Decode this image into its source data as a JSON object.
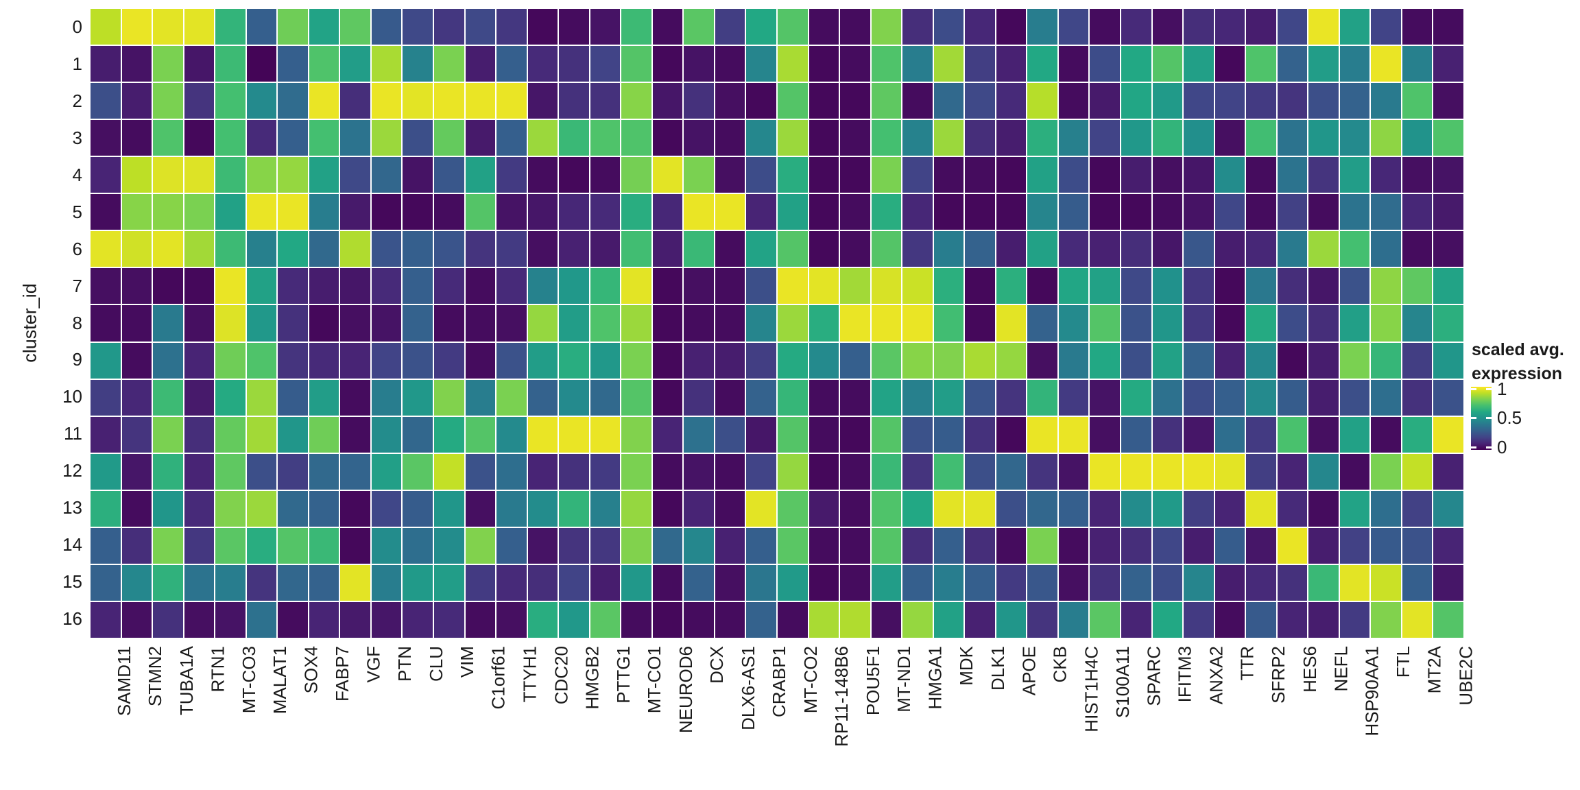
{
  "figure": {
    "background": "#ffffff",
    "text_color": "#1a1a1a"
  },
  "chart_data": {
    "type": "heatmap",
    "title": "",
    "xlabel": "",
    "ylabel": "cluster_id",
    "colormap": "viridis",
    "grid_gap_color": "#ffffff",
    "value_range": [
      0,
      1
    ],
    "legend": {
      "position": "right",
      "title_line1": "scaled avg.",
      "title_line2": "expression",
      "tick_labels": [
        "1",
        "0.5",
        "0"
      ],
      "tick_values": [
        1,
        0.5,
        0
      ]
    },
    "palette": [
      [
        0.0,
        "#440154"
      ],
      [
        0.1,
        "#482475"
      ],
      [
        0.2,
        "#414487"
      ],
      [
        0.3,
        "#355f8d"
      ],
      [
        0.4,
        "#2a788e"
      ],
      [
        0.5,
        "#21918c"
      ],
      [
        0.6,
        "#22a884"
      ],
      [
        0.7,
        "#44bf70"
      ],
      [
        0.8,
        "#7ad151"
      ],
      [
        0.9,
        "#bddf26"
      ],
      [
        1.0,
        "#fde725"
      ]
    ],
    "rows": [
      "0",
      "1",
      "2",
      "3",
      "4",
      "5",
      "6",
      "7",
      "8",
      "9",
      "10",
      "11",
      "12",
      "13",
      "14",
      "15",
      "16"
    ],
    "columns": [
      "SAMD11",
      "STMN2",
      "TUBA1A",
      "RTN1",
      "MT-CO3",
      "MALAT1",
      "SOX4",
      "FABP7",
      "VGF",
      "PTN",
      "CLU",
      "VIM",
      "C1orf61",
      "TTYH1",
      "CDC20",
      "HMGB2",
      "PTTG1",
      "MT-CO1",
      "NEUROD6",
      "DCX",
      "DLX6-AS1",
      "CRABP1",
      "MT-CO2",
      "RP11-148B6",
      "POU5F1",
      "MT-ND1",
      "HMGA1",
      "MDK",
      "DLK1",
      "APOE",
      "CKB",
      "HIST1H4C",
      "S100A11",
      "SPARC",
      "IFITM3",
      "ANXA2",
      "TTR",
      "SFRP2",
      "HES6",
      "NEFL",
      "HSP90AA1",
      "FTL",
      "MT2A",
      "UBE2C"
    ],
    "values": [
      [
        0.9,
        0.97,
        0.96,
        0.96,
        0.65,
        0.3,
        0.78,
        0.58,
        0.75,
        0.28,
        0.22,
        0.16,
        0.22,
        0.16,
        0.02,
        0.03,
        0.05,
        0.68,
        0.03,
        0.74,
        0.18,
        0.6,
        0.73,
        0.03,
        0.03,
        0.81,
        0.13,
        0.23,
        0.11,
        0.02,
        0.42,
        0.21,
        0.03,
        0.12,
        0.04,
        0.13,
        0.11,
        0.08,
        0.21,
        0.97,
        0.57,
        0.2,
        0.03,
        0.03
      ],
      [
        0.08,
        0.05,
        0.8,
        0.06,
        0.68,
        0.01,
        0.3,
        0.72,
        0.55,
        0.87,
        0.44,
        0.8,
        0.08,
        0.3,
        0.12,
        0.14,
        0.2,
        0.73,
        0.02,
        0.05,
        0.03,
        0.45,
        0.87,
        0.02,
        0.03,
        0.72,
        0.42,
        0.86,
        0.18,
        0.09,
        0.6,
        0.03,
        0.23,
        0.6,
        0.73,
        0.56,
        0.02,
        0.72,
        0.31,
        0.55,
        0.42,
        0.97,
        0.43,
        0.09
      ],
      [
        0.24,
        0.08,
        0.8,
        0.15,
        0.7,
        0.47,
        0.35,
        0.97,
        0.13,
        0.97,
        0.96,
        0.97,
        0.97,
        0.97,
        0.06,
        0.14,
        0.14,
        0.82,
        0.06,
        0.14,
        0.04,
        0.02,
        0.73,
        0.02,
        0.02,
        0.75,
        0.03,
        0.34,
        0.22,
        0.12,
        0.89,
        0.03,
        0.07,
        0.59,
        0.54,
        0.21,
        0.2,
        0.17,
        0.15,
        0.24,
        0.31,
        0.41,
        0.72,
        0.04
      ],
      [
        0.04,
        0.03,
        0.72,
        0.02,
        0.7,
        0.12,
        0.3,
        0.7,
        0.38,
        0.85,
        0.24,
        0.76,
        0.07,
        0.3,
        0.85,
        0.67,
        0.72,
        0.72,
        0.02,
        0.05,
        0.03,
        0.46,
        0.85,
        0.02,
        0.03,
        0.7,
        0.44,
        0.85,
        0.13,
        0.08,
        0.63,
        0.43,
        0.2,
        0.53,
        0.65,
        0.49,
        0.04,
        0.69,
        0.38,
        0.52,
        0.47,
        0.83,
        0.51,
        0.72
      ],
      [
        0.1,
        0.9,
        0.95,
        0.95,
        0.68,
        0.82,
        0.84,
        0.57,
        0.22,
        0.33,
        0.05,
        0.27,
        0.57,
        0.17,
        0.03,
        0.02,
        0.03,
        0.79,
        0.96,
        0.8,
        0.04,
        0.23,
        0.62,
        0.02,
        0.02,
        0.8,
        0.2,
        0.03,
        0.03,
        0.02,
        0.57,
        0.23,
        0.02,
        0.08,
        0.04,
        0.06,
        0.48,
        0.03,
        0.38,
        0.15,
        0.55,
        0.11,
        0.04,
        0.05
      ],
      [
        0.03,
        0.82,
        0.82,
        0.8,
        0.57,
        0.97,
        0.97,
        0.42,
        0.07,
        0.02,
        0.02,
        0.03,
        0.73,
        0.05,
        0.06,
        0.11,
        0.12,
        0.62,
        0.11,
        0.97,
        0.97,
        0.1,
        0.57,
        0.02,
        0.03,
        0.62,
        0.11,
        0.02,
        0.02,
        0.02,
        0.45,
        0.29,
        0.02,
        0.02,
        0.03,
        0.05,
        0.21,
        0.03,
        0.19,
        0.03,
        0.38,
        0.35,
        0.11,
        0.07
      ],
      [
        0.96,
        0.93,
        0.96,
        0.86,
        0.68,
        0.43,
        0.6,
        0.34,
        0.88,
        0.26,
        0.3,
        0.26,
        0.15,
        0.17,
        0.04,
        0.09,
        0.07,
        0.69,
        0.08,
        0.67,
        0.03,
        0.58,
        0.73,
        0.02,
        0.03,
        0.73,
        0.16,
        0.42,
        0.31,
        0.08,
        0.57,
        0.12,
        0.09,
        0.13,
        0.06,
        0.27,
        0.08,
        0.11,
        0.41,
        0.85,
        0.7,
        0.36,
        0.03,
        0.04
      ],
      [
        0.04,
        0.04,
        0.02,
        0.02,
        0.97,
        0.57,
        0.12,
        0.08,
        0.06,
        0.12,
        0.3,
        0.12,
        0.03,
        0.12,
        0.44,
        0.53,
        0.66,
        0.96,
        0.02,
        0.04,
        0.03,
        0.24,
        0.97,
        0.96,
        0.86,
        0.94,
        0.92,
        0.63,
        0.02,
        0.63,
        0.02,
        0.59,
        0.57,
        0.22,
        0.5,
        0.16,
        0.02,
        0.4,
        0.13,
        0.06,
        0.25,
        0.83,
        0.75,
        0.58
      ],
      [
        0.03,
        0.03,
        0.41,
        0.04,
        0.95,
        0.53,
        0.14,
        0.02,
        0.04,
        0.05,
        0.31,
        0.03,
        0.03,
        0.04,
        0.84,
        0.55,
        0.72,
        0.85,
        0.02,
        0.03,
        0.03,
        0.45,
        0.85,
        0.62,
        0.97,
        0.97,
        0.97,
        0.69,
        0.02,
        0.96,
        0.31,
        0.47,
        0.73,
        0.25,
        0.52,
        0.16,
        0.02,
        0.61,
        0.23,
        0.13,
        0.56,
        0.82,
        0.45,
        0.63
      ],
      [
        0.53,
        0.03,
        0.37,
        0.1,
        0.78,
        0.72,
        0.15,
        0.12,
        0.1,
        0.2,
        0.25,
        0.17,
        0.03,
        0.25,
        0.55,
        0.62,
        0.53,
        0.8,
        0.02,
        0.09,
        0.08,
        0.18,
        0.61,
        0.47,
        0.3,
        0.74,
        0.82,
        0.81,
        0.87,
        0.84,
        0.04,
        0.41,
        0.6,
        0.24,
        0.57,
        0.31,
        0.09,
        0.46,
        0.02,
        0.08,
        0.8,
        0.66,
        0.18,
        0.52
      ],
      [
        0.18,
        0.11,
        0.68,
        0.07,
        0.61,
        0.85,
        0.29,
        0.55,
        0.03,
        0.42,
        0.53,
        0.81,
        0.42,
        0.8,
        0.31,
        0.47,
        0.34,
        0.73,
        0.02,
        0.14,
        0.03,
        0.31,
        0.66,
        0.03,
        0.03,
        0.58,
        0.43,
        0.55,
        0.26,
        0.15,
        0.65,
        0.17,
        0.05,
        0.61,
        0.37,
        0.23,
        0.3,
        0.47,
        0.29,
        0.08,
        0.24,
        0.36,
        0.14,
        0.25
      ],
      [
        0.09,
        0.15,
        0.8,
        0.13,
        0.76,
        0.86,
        0.52,
        0.78,
        0.03,
        0.48,
        0.33,
        0.61,
        0.73,
        0.47,
        0.97,
        0.97,
        0.97,
        0.81,
        0.1,
        0.37,
        0.24,
        0.06,
        0.73,
        0.03,
        0.02,
        0.73,
        0.25,
        0.29,
        0.14,
        0.02,
        0.97,
        0.97,
        0.04,
        0.29,
        0.14,
        0.06,
        0.36,
        0.17,
        0.71,
        0.04,
        0.57,
        0.03,
        0.62,
        0.97
      ],
      [
        0.54,
        0.06,
        0.64,
        0.1,
        0.75,
        0.24,
        0.18,
        0.34,
        0.32,
        0.56,
        0.74,
        0.91,
        0.25,
        0.36,
        0.1,
        0.14,
        0.17,
        0.8,
        0.03,
        0.05,
        0.03,
        0.2,
        0.84,
        0.02,
        0.03,
        0.67,
        0.15,
        0.69,
        0.24,
        0.33,
        0.15,
        0.05,
        0.97,
        0.97,
        0.97,
        0.97,
        0.96,
        0.18,
        0.1,
        0.46,
        0.03,
        0.8,
        0.91,
        0.09
      ],
      [
        0.63,
        0.03,
        0.52,
        0.12,
        0.81,
        0.85,
        0.34,
        0.31,
        0.02,
        0.21,
        0.29,
        0.52,
        0.04,
        0.41,
        0.48,
        0.65,
        0.43,
        0.84,
        0.02,
        0.1,
        0.03,
        0.96,
        0.74,
        0.07,
        0.03,
        0.72,
        0.6,
        0.96,
        0.96,
        0.24,
        0.33,
        0.3,
        0.1,
        0.48,
        0.54,
        0.18,
        0.1,
        0.96,
        0.12,
        0.03,
        0.58,
        0.36,
        0.19,
        0.46
      ],
      [
        0.3,
        0.13,
        0.8,
        0.16,
        0.74,
        0.62,
        0.73,
        0.67,
        0.02,
        0.48,
        0.36,
        0.48,
        0.81,
        0.3,
        0.05,
        0.15,
        0.16,
        0.81,
        0.34,
        0.46,
        0.09,
        0.3,
        0.74,
        0.03,
        0.03,
        0.73,
        0.13,
        0.3,
        0.13,
        0.03,
        0.8,
        0.03,
        0.09,
        0.13,
        0.21,
        0.08,
        0.29,
        0.06,
        0.97,
        0.08,
        0.19,
        0.28,
        0.25,
        0.1
      ],
      [
        0.31,
        0.46,
        0.64,
        0.38,
        0.42,
        0.15,
        0.33,
        0.31,
        0.96,
        0.42,
        0.54,
        0.55,
        0.17,
        0.12,
        0.13,
        0.2,
        0.08,
        0.53,
        0.03,
        0.31,
        0.04,
        0.39,
        0.54,
        0.02,
        0.03,
        0.55,
        0.3,
        0.42,
        0.3,
        0.17,
        0.27,
        0.04,
        0.14,
        0.31,
        0.23,
        0.45,
        0.08,
        0.12,
        0.14,
        0.67,
        0.96,
        0.92,
        0.3,
        0.06
      ],
      [
        0.1,
        0.04,
        0.14,
        0.04,
        0.05,
        0.37,
        0.03,
        0.1,
        0.07,
        0.06,
        0.1,
        0.12,
        0.03,
        0.04,
        0.62,
        0.53,
        0.74,
        0.03,
        0.02,
        0.03,
        0.03,
        0.31,
        0.03,
        0.87,
        0.88,
        0.04,
        0.84,
        0.57,
        0.09,
        0.52,
        0.15,
        0.42,
        0.74,
        0.1,
        0.6,
        0.17,
        0.03,
        0.28,
        0.1,
        0.08,
        0.17,
        0.81,
        0.96,
        0.73
      ]
    ]
  }
}
